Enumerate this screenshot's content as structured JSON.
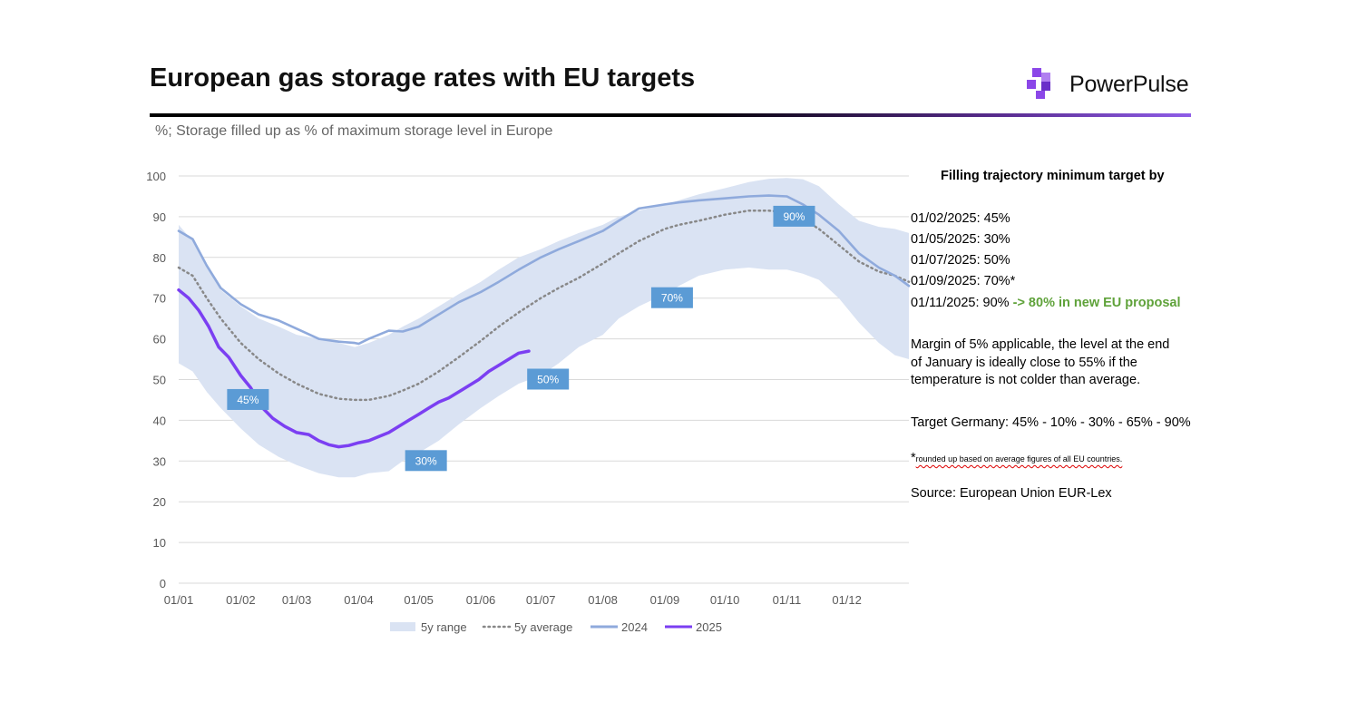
{
  "header": {
    "title": "European gas storage rates with EU targets",
    "subtitle": "%; Storage filled up as % of maximum storage level in Europe",
    "brand": "PowerPulse",
    "colors": {
      "brand_purple": "#8b47e8",
      "rule_dark": "#000000"
    }
  },
  "notes": {
    "heading": "Filling trajectory minimum target by",
    "targets": [
      "01/02/2025: 45%",
      "01/05/2025: 30%",
      "01/07/2025: 50%",
      "01/09/2025: 70%*",
      "01/11/2025: 90%"
    ],
    "proposal": "-> 80% in new EU proposal",
    "margin_line1": "Margin of 5% applicable, the level at the end",
    "margin_line2": "of January is ideally close to 55% if the",
    "margin_line3": "temperature is not colder than average.",
    "germany": "Target Germany: 45% - 10% - 30% - 65% - 90%",
    "footnote_star": "*",
    "footnote": "rounded up based on average figures of all EU countries.",
    "source": "Source: European Union EUR-Lex"
  },
  "chart_data": {
    "type": "line",
    "title": "European gas storage rates with EU targets",
    "xlabel": "",
    "ylabel": "",
    "ylim": [
      0,
      100
    ],
    "yticks": [
      0,
      10,
      20,
      30,
      40,
      50,
      60,
      70,
      80,
      90,
      100
    ],
    "xlim": [
      0,
      365
    ],
    "x_unit": "day of year",
    "xticks": [
      {
        "day": 0,
        "label": "01/01"
      },
      {
        "day": 31,
        "label": "01/02"
      },
      {
        "day": 59,
        "label": "01/03"
      },
      {
        "day": 90,
        "label": "01/04"
      },
      {
        "day": 120,
        "label": "01/05"
      },
      {
        "day": 151,
        "label": "01/06"
      },
      {
        "day": 181,
        "label": "01/07"
      },
      {
        "day": 212,
        "label": "01/08"
      },
      {
        "day": 243,
        "label": "01/09"
      },
      {
        "day": 273,
        "label": "01/10"
      },
      {
        "day": 304,
        "label": "01/11"
      },
      {
        "day": 334,
        "label": "01/12"
      }
    ],
    "grid": true,
    "legend_position": "bottom",
    "series": [
      {
        "name": "5y range",
        "kind": "band",
        "color": "#dae3f3",
        "x": [
          0,
          7,
          14,
          21,
          31,
          40,
          50,
          59,
          70,
          80,
          88,
          95,
          105,
          112,
          120,
          130,
          140,
          151,
          160,
          170,
          181,
          190,
          200,
          212,
          220,
          230,
          243,
          250,
          260,
          273,
          285,
          295,
          304,
          312,
          320,
          330,
          340,
          350,
          358,
          365
        ],
        "upper": [
          88,
          84,
          78,
          72,
          68,
          65,
          63,
          61,
          60,
          59,
          58,
          59,
          61,
          63,
          65,
          68,
          71,
          74,
          77,
          80,
          82,
          84,
          86,
          88,
          90,
          91.5,
          93,
          94,
          95.5,
          97,
          98.5,
          99.3,
          99.5,
          99.2,
          97.5,
          93,
          89,
          87.5,
          87,
          86
        ],
        "lower": [
          54,
          52,
          47,
          43,
          38,
          34,
          31,
          29,
          27,
          26,
          26,
          27,
          27.5,
          30,
          32,
          35,
          39,
          43,
          46,
          49,
          51,
          54,
          58,
          61,
          65,
          68,
          71,
          73,
          75.5,
          77,
          77.5,
          77,
          77,
          76,
          74.5,
          70,
          64,
          59,
          56,
          55
        ]
      },
      {
        "name": "5y average",
        "kind": "dotted",
        "color": "#888888",
        "x": [
          0,
          7,
          14,
          21,
          31,
          40,
          50,
          59,
          70,
          80,
          88,
          95,
          105,
          112,
          120,
          130,
          140,
          151,
          160,
          170,
          181,
          190,
          200,
          212,
          220,
          230,
          243,
          250,
          260,
          273,
          285,
          295,
          304,
          312,
          320,
          330,
          340,
          350,
          358,
          365
        ],
        "y": [
          77.5,
          75.5,
          70,
          65,
          59,
          55,
          51.5,
          49,
          46.5,
          45.3,
          45,
          45,
          46,
          47.3,
          49,
          52,
          55.5,
          59.5,
          63,
          66.5,
          70,
          72.5,
          75,
          78.5,
          81,
          84,
          87,
          88,
          89,
          90.5,
          91.5,
          91.5,
          91,
          89.5,
          87,
          83,
          79,
          76.5,
          75.5,
          74
        ]
      },
      {
        "name": "2024",
        "kind": "line",
        "color": "#8faadc",
        "x": [
          0,
          7,
          14,
          21,
          31,
          40,
          50,
          59,
          70,
          80,
          88,
          90,
          95,
          100,
          105,
          112,
          120,
          130,
          140,
          151,
          160,
          170,
          181,
          190,
          200,
          212,
          220,
          230,
          243,
          250,
          260,
          273,
          285,
          295,
          304,
          312,
          320,
          330,
          340,
          350,
          358,
          365
        ],
        "y": [
          86.5,
          84.5,
          78,
          72.5,
          68.5,
          66,
          64.5,
          62.5,
          60,
          59.3,
          59,
          58.8,
          60,
          61,
          62,
          61.8,
          63,
          66,
          69,
          71.5,
          74,
          77,
          80,
          82,
          84,
          86.5,
          89,
          92,
          93,
          93.5,
          94,
          94.5,
          95,
          95.2,
          95,
          93,
          90.5,
          86.5,
          81,
          77.5,
          75.5,
          73
        ]
      },
      {
        "name": "2025",
        "kind": "line",
        "color": "#7b3ff2",
        "x": [
          0,
          5,
          10,
          15,
          20,
          25,
          31,
          36,
          42,
          47,
          53,
          59,
          65,
          70,
          75,
          80,
          85,
          90,
          95,
          100,
          105,
          110,
          115,
          120,
          125,
          130,
          135,
          140,
          145,
          150,
          155,
          160,
          165,
          170,
          175
        ],
        "y": [
          72,
          70,
          67,
          63,
          58,
          55.5,
          51,
          48,
          43,
          40.5,
          38.5,
          37,
          36.5,
          35,
          34,
          33.5,
          33.8,
          34.5,
          35,
          36,
          37,
          38.5,
          40,
          41.5,
          43,
          44.5,
          45.5,
          47,
          48.5,
          50,
          52,
          53.5,
          55,
          56.5,
          57
        ]
      }
    ],
    "target_labels": [
      {
        "day": 31,
        "value": 45,
        "label": "45%"
      },
      {
        "day": 120,
        "value": 30,
        "label": "30%"
      },
      {
        "day": 181,
        "value": 50,
        "label": "50%"
      },
      {
        "day": 243,
        "value": 70,
        "label": "70%"
      },
      {
        "day": 304,
        "value": 90,
        "label": "90%"
      }
    ],
    "target_label_color": "#5b9bd5"
  }
}
